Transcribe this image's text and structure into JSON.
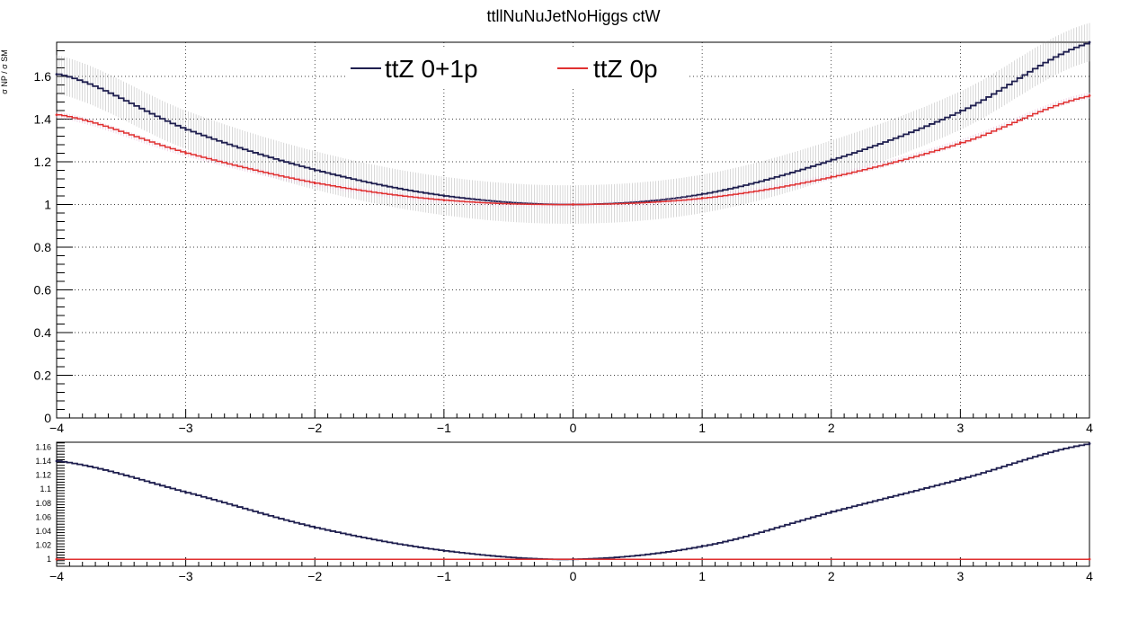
{
  "title": "ttllNuNuJetNoHiggs ctW",
  "top_ylabel": "σ NP / σ SM",
  "legend": [
    {
      "label": "ttZ 0+1p",
      "color": "#1f1f4f"
    },
    {
      "label": "ttZ 0p",
      "color": "#e03030"
    }
  ],
  "colors": {
    "dark_series": "#1f1f4f",
    "red_series": "#e03030",
    "band_gray": "#888888",
    "band_pink": "#d8a0c8"
  },
  "chart_data": [
    {
      "type": "line",
      "panel": "top",
      "title": "ttllNuNuJetNoHiggs ctW",
      "ylabel": "σ NP / σ SM",
      "xlim": [
        -4,
        4
      ],
      "ylim": [
        0,
        1.76
      ],
      "grid": true,
      "legend_position": "top",
      "x_ticks": [
        -4,
        -3,
        -2,
        -1,
        0,
        1,
        2,
        3,
        4
      ],
      "x_tick_labels": [
        "−4",
        "−3",
        "−2",
        "−1",
        "0",
        "1",
        "2",
        "3",
        "4"
      ],
      "y_ticks": [
        0,
        0.2,
        0.4,
        0.6,
        0.8,
        1.0,
        1.2,
        1.4,
        1.6
      ],
      "y_tick_labels": [
        "0",
        "0.2",
        "0.4",
        "0.6",
        "0.8",
        "1",
        "1.2",
        "1.4",
        "1.6"
      ],
      "series": [
        {
          "name": "ttZ 0+1p",
          "x": [
            -4,
            -3,
            -2,
            -1,
            0,
            1,
            2,
            3,
            4
          ],
          "values": [
            1.61,
            1.35,
            1.16,
            1.04,
            1.0,
            1.05,
            1.21,
            1.44,
            1.76
          ],
          "band": 0.09
        },
        {
          "name": "ttZ 0p",
          "x": [
            -4,
            -3,
            -2,
            -1,
            0,
            1,
            2,
            3,
            4
          ],
          "values": [
            1.42,
            1.24,
            1.1,
            1.02,
            1.0,
            1.03,
            1.13,
            1.29,
            1.51
          ],
          "band": 0.015
        }
      ]
    },
    {
      "type": "line",
      "panel": "ratio",
      "xlim": [
        -4,
        4
      ],
      "ylim": [
        0.99,
        1.167
      ],
      "grid": false,
      "x_ticks": [
        -4,
        -3,
        -2,
        -1,
        0,
        1,
        2,
        3,
        4
      ],
      "x_tick_labels": [
        "−4",
        "−3",
        "−2",
        "−1",
        "0",
        "1",
        "2",
        "3",
        "4"
      ],
      "y_ticks": [
        1.0,
        1.02,
        1.04,
        1.06,
        1.08,
        1.1,
        1.12,
        1.14,
        1.16
      ],
      "y_tick_labels": [
        "1",
        "1.02",
        "1.04",
        "1.06",
        "1.08",
        "1.1",
        "1.12",
        "1.14",
        "1.16"
      ],
      "series": [
        {
          "name": "ttZ 0+1p",
          "x": [
            -4,
            -3,
            -2,
            -1,
            0,
            1,
            2,
            3,
            4
          ],
          "values": [
            1.14,
            1.095,
            1.045,
            1.012,
            1.0,
            1.019,
            1.068,
            1.115,
            1.165
          ]
        },
        {
          "name": "ttZ 0p",
          "x": [
            -4,
            4
          ],
          "values": [
            1.0,
            1.0
          ]
        }
      ]
    }
  ]
}
